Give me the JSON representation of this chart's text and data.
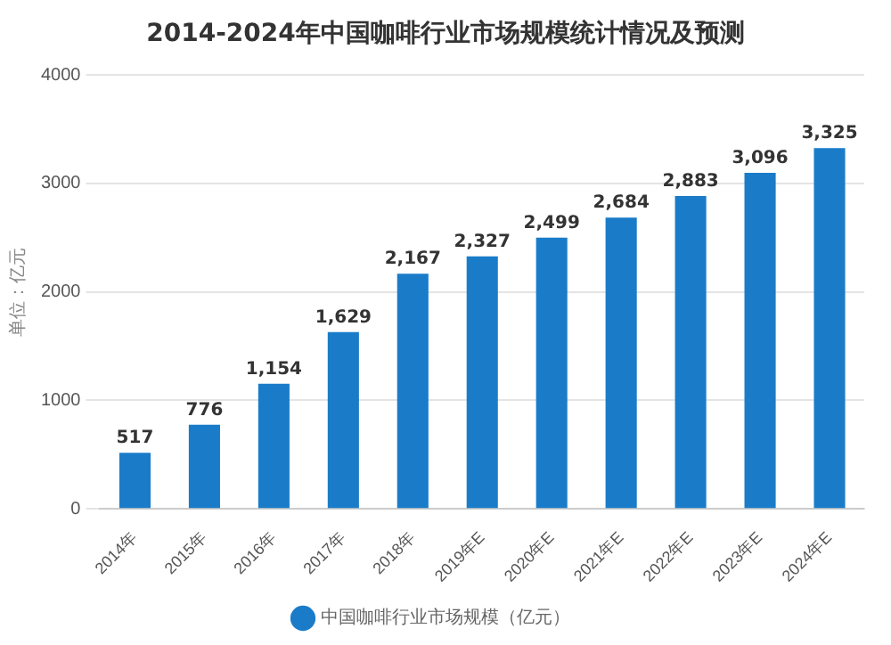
{
  "chart_data": {
    "type": "bar",
    "title": "2014-2024年中国咖啡行业市场规模统计情况及预测",
    "ylabel": "单位：亿元",
    "categories": [
      "2014年",
      "2015年",
      "2016年",
      "2017年",
      "2018年",
      "2019年E",
      "2020年E",
      "2021年E",
      "2022年E",
      "2023年E",
      "2024年E"
    ],
    "series": [
      {
        "name": "中国咖啡行业市场规模（亿元）",
        "color": "#1a7cc9",
        "values": [
          517,
          776,
          1154,
          1629,
          2167,
          2327,
          2499,
          2684,
          2883,
          3096,
          3325
        ],
        "value_labels": [
          "517",
          "776",
          "1,154",
          "1,629",
          "2,167",
          "2,327",
          "2,499",
          "2,684",
          "2,883",
          "3,096",
          "3,325"
        ]
      }
    ],
    "ylim": [
      0,
      4000
    ],
    "yticks": [
      0,
      1000,
      2000,
      3000,
      4000
    ],
    "grid": "y",
    "legend": "bottom"
  }
}
